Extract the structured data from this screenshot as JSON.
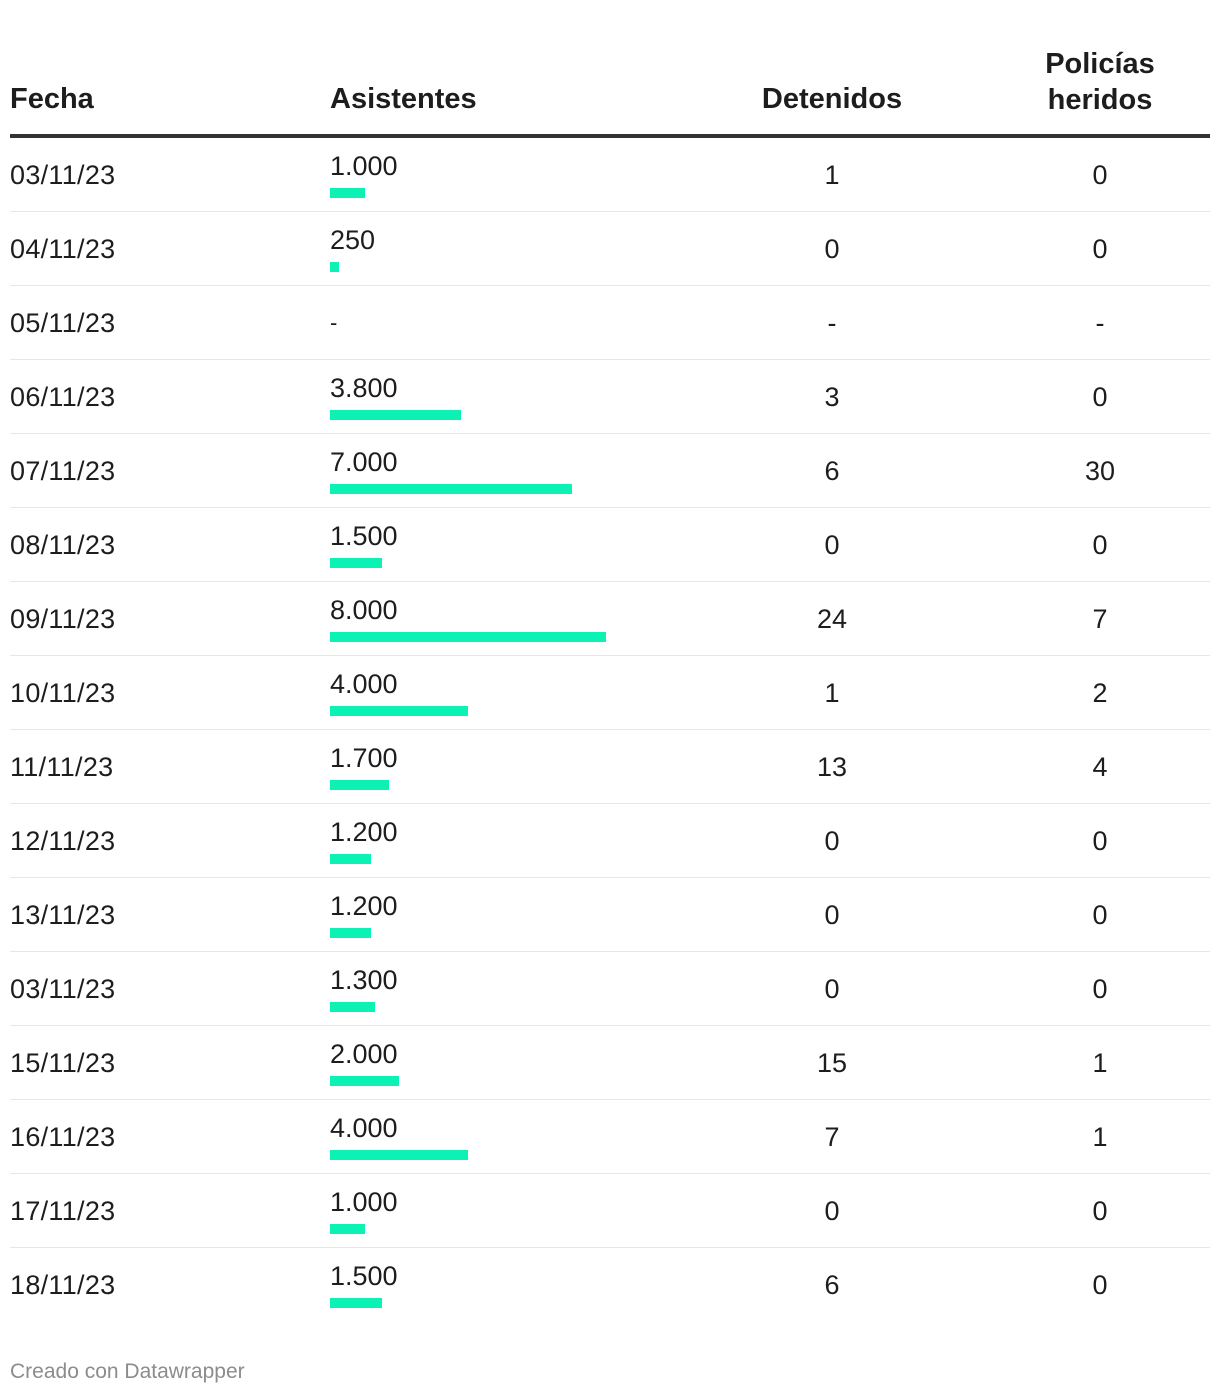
{
  "chart_data": {
    "type": "table",
    "columns": [
      "Fecha",
      "Asistentes",
      "Detenidos",
      "Policías heridos"
    ],
    "bar_column": "Asistentes",
    "bar_color": "#0cf2b4",
    "bar_max": 8000,
    "rows": [
      {
        "fecha": "03/11/23",
        "asistentes": 1000,
        "asistentes_label": "1.000",
        "detenidos": "1",
        "policias": "0"
      },
      {
        "fecha": "04/11/23",
        "asistentes": 250,
        "asistentes_label": "250",
        "detenidos": "0",
        "policias": "0"
      },
      {
        "fecha": "05/11/23",
        "asistentes": null,
        "asistentes_label": "-",
        "detenidos": "-",
        "policias": "-"
      },
      {
        "fecha": "06/11/23",
        "asistentes": 3800,
        "asistentes_label": "3.800",
        "detenidos": "3",
        "policias": "0"
      },
      {
        "fecha": "07/11/23",
        "asistentes": 7000,
        "asistentes_label": "7.000",
        "detenidos": "6",
        "policias": "30"
      },
      {
        "fecha": "08/11/23",
        "asistentes": 1500,
        "asistentes_label": "1.500",
        "detenidos": "0",
        "policias": "0"
      },
      {
        "fecha": "09/11/23",
        "asistentes": 8000,
        "asistentes_label": "8.000",
        "detenidos": "24",
        "policias": "7"
      },
      {
        "fecha": "10/11/23",
        "asistentes": 4000,
        "asistentes_label": "4.000",
        "detenidos": "1",
        "policias": "2"
      },
      {
        "fecha": "11/11/23",
        "asistentes": 1700,
        "asistentes_label": "1.700",
        "detenidos": "13",
        "policias": "4"
      },
      {
        "fecha": "12/11/23",
        "asistentes": 1200,
        "asistentes_label": "1.200",
        "detenidos": "0",
        "policias": "0"
      },
      {
        "fecha": "13/11/23",
        "asistentes": 1200,
        "asistentes_label": "1.200",
        "detenidos": "0",
        "policias": "0"
      },
      {
        "fecha": "03/11/23",
        "asistentes": 1300,
        "asistentes_label": "1.300",
        "detenidos": "0",
        "policias": "0"
      },
      {
        "fecha": "15/11/23",
        "asistentes": 2000,
        "asistentes_label": "2.000",
        "detenidos": "15",
        "policias": "1"
      },
      {
        "fecha": "16/11/23",
        "asistentes": 4000,
        "asistentes_label": "4.000",
        "detenidos": "7",
        "policias": "1"
      },
      {
        "fecha": "17/11/23",
        "asistentes": 1000,
        "asistentes_label": "1.000",
        "detenidos": "0",
        "policias": "0"
      },
      {
        "fecha": "18/11/23",
        "asistentes": 1500,
        "asistentes_label": "1.500",
        "detenidos": "6",
        "policias": "0"
      }
    ]
  },
  "header": {
    "fecha": "Fecha",
    "asistentes": "Asistentes",
    "detenidos": "Detenidos",
    "policias_line1": "Policías",
    "policias_line2": "heridos"
  },
  "footer": {
    "credit": "Creado con Datawrapper"
  }
}
